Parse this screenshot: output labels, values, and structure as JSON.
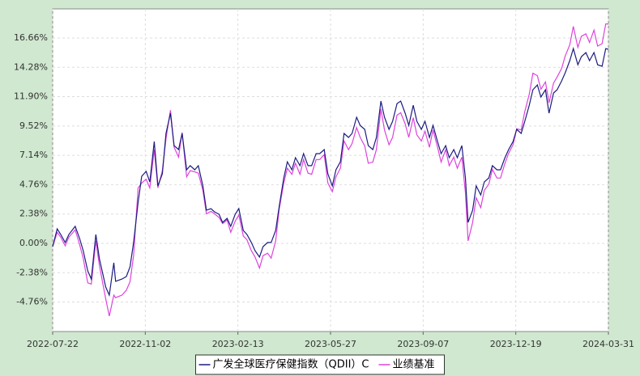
{
  "chart_data": {
    "type": "line",
    "x": [
      "2022-07-22",
      "2022-07-27",
      "2022-07-31",
      "2022-08-05",
      "2022-08-09",
      "2022-08-16",
      "2022-08-21",
      "2022-08-25",
      "2022-08-30",
      "2022-09-03",
      "2022-09-08",
      "2022-09-12",
      "2022-09-19",
      "2022-09-23",
      "2022-09-28",
      "2022-09-30",
      "2022-10-07",
      "2022-10-12",
      "2022-10-16",
      "2022-10-20",
      "2022-10-25",
      "2022-10-29",
      "2022-11-03",
      "2022-11-07",
      "2022-11-12",
      "2022-11-16",
      "2022-11-21",
      "2022-11-25",
      "2022-11-30",
      "2022-12-04",
      "2022-12-09",
      "2022-12-13",
      "2022-12-18",
      "2022-12-22",
      "2022-12-27",
      "2022-12-31",
      "2023-01-05",
      "2023-01-09",
      "2023-01-14",
      "2023-01-18",
      "2023-01-23",
      "2023-01-27",
      "2023-02-01",
      "2023-02-05",
      "2023-02-10",
      "2023-02-14",
      "2023-02-19",
      "2023-02-23",
      "2023-02-28",
      "2023-03-04",
      "2023-03-09",
      "2023-03-13",
      "2023-03-18",
      "2023-03-22",
      "2023-03-27",
      "2023-03-31",
      "2023-04-05",
      "2023-04-09",
      "2023-04-14",
      "2023-04-18",
      "2023-04-23",
      "2023-04-27",
      "2023-05-02",
      "2023-05-06",
      "2023-05-11",
      "2023-05-15",
      "2023-05-20",
      "2023-05-24",
      "2023-05-29",
      "2023-06-02",
      "2023-06-07",
      "2023-06-11",
      "2023-06-16",
      "2023-06-20",
      "2023-06-25",
      "2023-06-29",
      "2023-07-04",
      "2023-07-08",
      "2023-07-13",
      "2023-07-17",
      "2023-07-22",
      "2023-07-26",
      "2023-07-31",
      "2023-08-04",
      "2023-08-09",
      "2023-08-13",
      "2023-08-18",
      "2023-08-22",
      "2023-08-27",
      "2023-08-31",
      "2023-09-05",
      "2023-09-09",
      "2023-09-14",
      "2023-09-18",
      "2023-09-23",
      "2023-09-27",
      "2023-10-02",
      "2023-10-06",
      "2023-10-11",
      "2023-10-15",
      "2023-10-20",
      "2023-10-24",
      "2023-10-27",
      "2023-11-01",
      "2023-11-05",
      "2023-11-10",
      "2023-11-14",
      "2023-11-19",
      "2023-11-23",
      "2023-11-28",
      "2023-12-02",
      "2023-12-07",
      "2023-12-11",
      "2023-12-16",
      "2023-12-20",
      "2023-12-25",
      "2023-12-29",
      "2024-01-03",
      "2024-01-07",
      "2024-01-12",
      "2024-01-16",
      "2024-01-21",
      "2024-01-25",
      "2024-01-30",
      "2024-02-03",
      "2024-02-08",
      "2024-02-12",
      "2024-02-17",
      "2024-02-21",
      "2024-02-26",
      "2024-03-01",
      "2024-03-06",
      "2024-03-10",
      "2024-03-15",
      "2024-03-19",
      "2024-03-24",
      "2024-03-28",
      "2024-03-31"
    ],
    "series": [
      {
        "name": "广发全球医疗保健指数（QDII）C",
        "color": "#1c1c80",
        "values": [
          -0.26,
          1.18,
          0.72,
          0.07,
          0.72,
          1.38,
          0.39,
          -0.59,
          -2.23,
          -2.89,
          0.72,
          -1.25,
          -3.54,
          -4.2,
          -1.57,
          -3.08,
          -2.89,
          -2.69,
          -1.9,
          0.07,
          3.34,
          5.44,
          5.84,
          4.98,
          8.26,
          4.66,
          5.64,
          8.92,
          10.56,
          7.93,
          7.61,
          8.92,
          5.97,
          6.3,
          5.97,
          6.3,
          4.66,
          2.69,
          2.82,
          2.56,
          2.36,
          1.7,
          2.03,
          1.38,
          2.36,
          2.82,
          1.05,
          0.72,
          0.07,
          -0.59,
          -1.11,
          -0.26,
          0.07,
          0.07,
          1.05,
          3.02,
          5.31,
          6.62,
          5.97,
          6.95,
          6.3,
          7.28,
          6.3,
          6.3,
          7.28,
          7.28,
          7.61,
          5.64,
          4.66,
          5.97,
          6.62,
          8.92,
          8.59,
          8.92,
          10.23,
          9.57,
          9.25,
          7.93,
          7.61,
          8.59,
          11.54,
          10.23,
          9.25,
          9.9,
          11.34,
          11.54,
          10.56,
          9.57,
          11.21,
          9.9,
          9.25,
          9.9,
          8.59,
          9.57,
          8.26,
          7.28,
          7.93,
          6.95,
          7.61,
          6.95,
          7.93,
          5.31,
          1.7,
          2.69,
          4.66,
          3.93,
          4.98,
          5.31,
          6.3,
          5.97,
          5.97,
          6.95,
          7.61,
          8.26,
          9.25,
          8.92,
          9.9,
          11.21,
          12.46,
          12.85,
          11.87,
          12.46,
          10.56,
          12.2,
          12.46,
          13.18,
          13.84,
          14.82,
          15.8,
          14.49,
          15.15,
          15.48,
          14.82,
          15.48,
          14.49,
          14.36,
          15.8,
          15.74
        ]
      },
      {
        "name": "业绩基准",
        "color": "#dd44dd",
        "values": [
          -0.26,
          0.9,
          0.5,
          -0.2,
          0.5,
          1.1,
          -0.1,
          -1.2,
          -3.2,
          -3.3,
          0.2,
          -1.8,
          -4.5,
          -5.9,
          -4.2,
          -4.4,
          -4.2,
          -3.8,
          -3.1,
          -1.0,
          4.5,
          4.9,
          5.2,
          4.5,
          7.6,
          4.5,
          5.9,
          8.5,
          10.8,
          7.8,
          7.0,
          9.0,
          5.4,
          5.9,
          5.8,
          5.7,
          4.3,
          2.4,
          2.6,
          2.4,
          2.1,
          1.6,
          1.9,
          0.9,
          1.8,
          2.3,
          0.6,
          0.3,
          -0.6,
          -1.1,
          -2.0,
          -1.0,
          -0.8,
          -1.2,
          0.2,
          2.8,
          4.9,
          6.1,
          5.6,
          6.5,
          5.6,
          6.8,
          5.7,
          5.6,
          6.8,
          6.8,
          7.2,
          4.9,
          4.2,
          5.4,
          6.1,
          8.3,
          7.6,
          8.1,
          9.4,
          8.6,
          7.9,
          6.5,
          6.6,
          7.6,
          10.9,
          9.2,
          8.0,
          8.6,
          10.4,
          10.6,
          9.7,
          8.6,
          10.2,
          8.8,
          8.3,
          9.1,
          7.8,
          9.2,
          7.8,
          6.6,
          7.6,
          6.3,
          7.0,
          6.1,
          7.0,
          4.1,
          0.2,
          1.7,
          3.7,
          2.9,
          4.3,
          4.8,
          6.0,
          5.3,
          5.3,
          6.5,
          7.3,
          8.0,
          9.3,
          9.2,
          10.7,
          12.1,
          13.8,
          13.6,
          12.5,
          13.1,
          11.4,
          13.0,
          13.5,
          14.2,
          15.2,
          16.1,
          17.6,
          15.9,
          16.8,
          17.0,
          16.3,
          17.3,
          16.0,
          16.2,
          17.8,
          17.8
        ]
      }
    ],
    "xlim": [
      "2022-07-22",
      "2024-03-31"
    ],
    "xticks": [
      "2022-07-22",
      "2022-11-02",
      "2023-02-13",
      "2023-05-27",
      "2023-09-07",
      "2023-12-19",
      "2024-03-31"
    ],
    "ylim": [
      -7.15,
      19.02
    ],
    "yticks": [
      {
        "value": -4.76,
        "label": "-4.76%"
      },
      {
        "value": -2.38,
        "label": "-2.38%"
      },
      {
        "value": 0,
        "label": "0.00%"
      },
      {
        "value": 2.38,
        "label": "2.38%"
      },
      {
        "value": 4.76,
        "label": "4.76%"
      },
      {
        "value": 7.14,
        "label": "7.14%"
      },
      {
        "value": 9.52,
        "label": "9.52%"
      },
      {
        "value": 11.9,
        "label": "11.90%"
      },
      {
        "value": 14.28,
        "label": "14.28%"
      },
      {
        "value": 16.66,
        "label": "16.66%"
      }
    ],
    "grid": true,
    "legend": "bottom"
  }
}
